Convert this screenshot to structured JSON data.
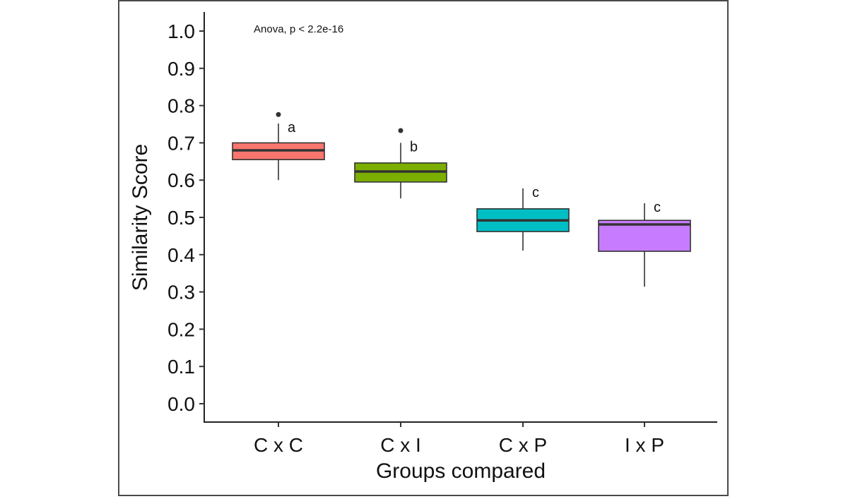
{
  "chart_data": {
    "type": "boxplot",
    "title": "",
    "xlabel": "Groups compared",
    "ylabel": "Similarity Score",
    "ylim": [
      0.0,
      1.0
    ],
    "yticks": [
      "0.0",
      "0.1",
      "0.2",
      "0.3",
      "0.4",
      "0.5",
      "0.6",
      "0.7",
      "0.8",
      "0.9",
      "1.0"
    ],
    "grid": false,
    "legend": "none",
    "annotation": "Anova, p < 2.2e-16",
    "categories": [
      "C x C",
      "C x I",
      "C x P",
      "I x P"
    ],
    "series": [
      {
        "name": "C x C",
        "color": "#F8766D",
        "whisker_low": 0.6,
        "q1": 0.655,
        "median": 0.68,
        "q3": 0.7,
        "whisker_high": 0.752,
        "outliers": [
          0.776
        ],
        "letter": "a"
      },
      {
        "name": "C x I",
        "color": "#7CAE00",
        "whisker_low": 0.551,
        "q1": 0.595,
        "median": 0.623,
        "q3": 0.646,
        "whisker_high": 0.7,
        "outliers": [
          0.733
        ],
        "letter": "b"
      },
      {
        "name": "C x P",
        "color": "#00BFC4",
        "whisker_low": 0.411,
        "q1": 0.462,
        "median": 0.492,
        "q3": 0.523,
        "whisker_high": 0.578,
        "outliers": [],
        "letter": "c"
      },
      {
        "name": "I x P",
        "color": "#C77CFF",
        "whisker_low": 0.314,
        "q1": 0.409,
        "median": 0.481,
        "q3": 0.492,
        "whisker_high": 0.538,
        "outliers": [],
        "letter": "c"
      }
    ]
  }
}
